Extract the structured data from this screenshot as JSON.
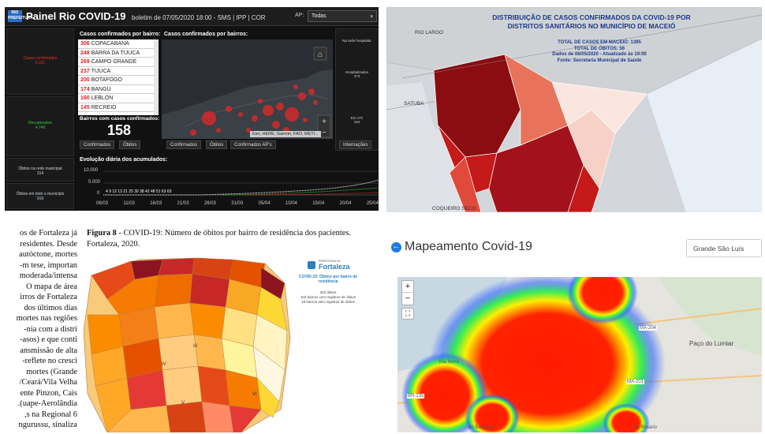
{
  "rio": {
    "logo": "RIO PREFEITURA",
    "title": "Painel Rio COVID-19",
    "bulletin": "boletim de 07/05/2020 18:00 - SMS | IPP | COR",
    "ap_label": "AP:",
    "ap_value": "Todas",
    "left_panels": [
      {
        "label": "Casos confirmados\n6.021",
        "color": "#e03131"
      },
      {
        "label": "Recuperados\n4.748",
        "color": "#41c241"
      },
      {
        "label": "Óbitos na rede municipal\n314",
        "color": "#cfd8e0"
      },
      {
        "label": "Óbitos em todo o município\n919",
        "color": "#cfd8e0"
      }
    ],
    "list_title": "Casos confirmados por bairro:",
    "list": [
      {
        "num": "306",
        "name": "COPACABANA"
      },
      {
        "num": "248",
        "name": "BARRA DA TIJUCA"
      },
      {
        "num": "269",
        "name": "CAMPO GRANDE"
      },
      {
        "num": "237",
        "name": "TIJUCA"
      },
      {
        "num": "200",
        "name": "BOTAFOGO"
      },
      {
        "num": "174",
        "name": "BANGU"
      },
      {
        "num": "160",
        "name": "LEBLON"
      },
      {
        "num": "145",
        "name": "RECREIO"
      }
    ],
    "bairros_label": "Bairros com casos confirmados:",
    "bairros_value": "158",
    "map_title": "Casos confirmados por bairros:",
    "map_credit": "Esri, HERE, Garmin, FAO, METI...",
    "tabs_list": [
      "Confirmados",
      "Óbitos"
    ],
    "tabs_map": [
      "Confirmados",
      "Óbitos",
      "Confirmados AP's"
    ],
    "tab_right": "Internações",
    "right_labels": [
      "Na rede hospitalar",
      "Hospitalizados\n473",
      "Em UTI\n164"
    ],
    "evo_title": "Evolução diária dos acumulados:",
    "y_ticks": [
      "10.000",
      "5.000",
      "0"
    ],
    "x_ticks": [
      "06/03",
      "11/03",
      "16/03",
      "21/03",
      "26/03",
      "31/03",
      "05/04",
      "10/04",
      "15/04",
      "20/04",
      "25/04"
    ],
    "small_vals": "4 9 12 13 21 25 30 38 42 48 51 63 63"
  },
  "maceio": {
    "title": "DISTRIBUIÇÃO DE CASOS CONFIRMADOS DA COVID-19 POR\nDISTRITOS SANITÁRIOS NO MUNICÍPIO DE MACEIÓ",
    "info": [
      "TOTAL DE CASOS EM MACEIÓ: 1395",
      "TOTAL DE ÓBITOS: 56",
      "Dados de 06/05/2020  -  Atualizado às 19:00",
      "Fonte: Secretaria Municipal de Saúde"
    ],
    "labels": [
      "RIO LARGO",
      "SATUBA",
      "COQUEIRO SECO"
    ],
    "colors": {
      "dark": "#8b0d12",
      "mid": "#c41a1a",
      "light": "#e8735a",
      "pale": "#f6d2c6"
    }
  },
  "fortaleza": {
    "para": [
      "os de Fortaleza já",
      "residentes. Desde",
      "autóctone, mortes",
      "m tese, importan-",
      "moderada/intensa",
      "O mapa de área",
      "irros de Fortaleza",
      "dos últimos dias",
      "mortes nas regiões",
      "nia com a distri-",
      "asos) e que conti-",
      "ansmissão de alta",
      "reflete no cresci-",
      "mortes (Grande",
      "Ceará/Vila Velha/",
      "ente Pinzon, Cais",
      "uape-Aerolândia).",
      "s na Regional 6,",
      "ngurussu, sinaliza",
      "   "
    ],
    "fig_label": "Figura 8",
    "fig_caption": " - COVID-19: Número de óbitos por bairro de residência dos pacientes. Fortaleza, 2020.",
    "logo_text": "Fortaleza",
    "logo_sub": "PREFEITURA DE",
    "box_title": "COVID-19: Óbitos por bairro de residência",
    "box_stats": [
      "324 óbitos",
      "103 bairros com registros de óbitos",
      "18 bairros sem registros de óbitos"
    ],
    "region_labels": [
      "III",
      "IV",
      "V",
      "VI"
    ]
  },
  "mapeamento": {
    "title": "Mapeamento Covid-19",
    "select_value": "Grande São Luís",
    "zoom_in": "+",
    "zoom_out": "−",
    "places": [
      "Paço do Lumiar",
      "Vila Nova",
      "MA-204",
      "MA-201",
      "BR-135",
      "do Bacanga",
      "do Rosário"
    ]
  }
}
